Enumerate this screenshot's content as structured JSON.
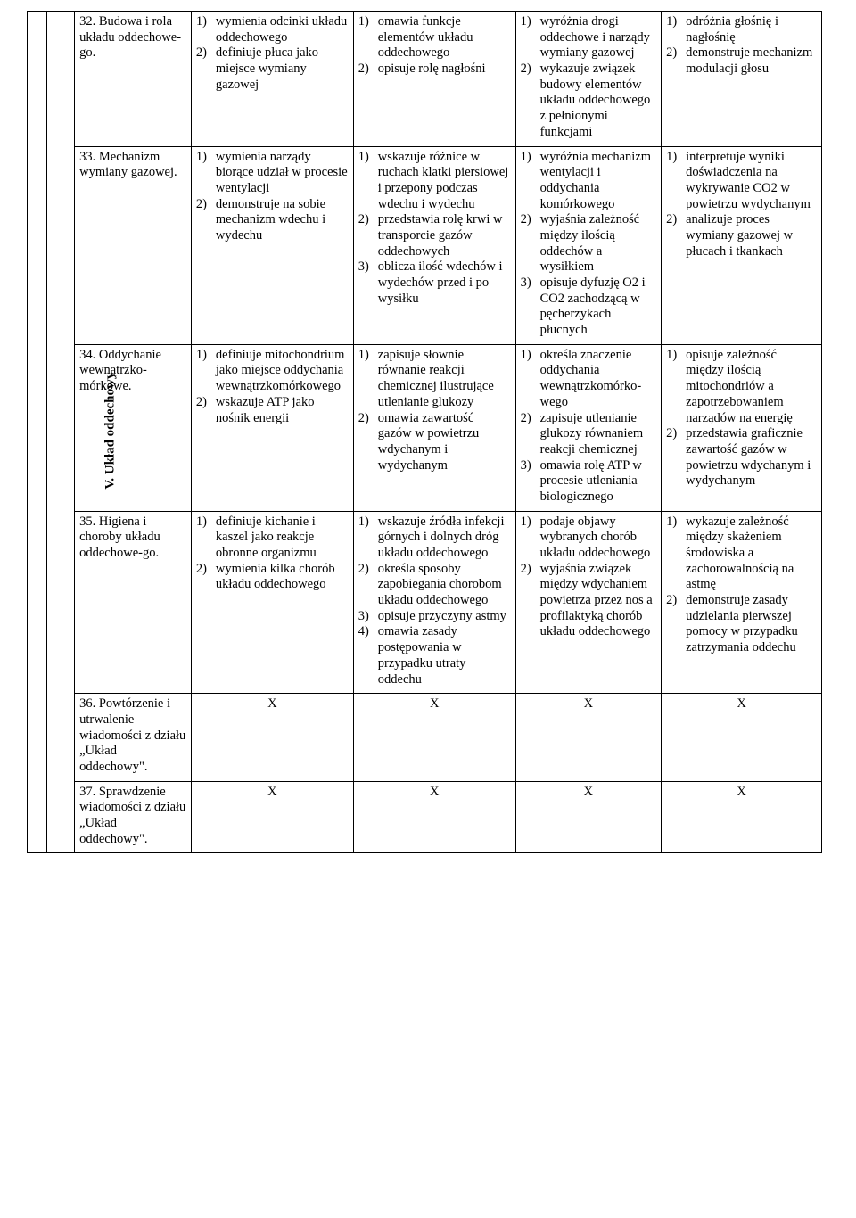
{
  "section_label": "V. Układ oddechowy",
  "rows": [
    {
      "topic": "32. Budowa i rola układu oddechowe-go.",
      "c1": [
        {
          "n": "1)",
          "t": "wymienia odcinki układu oddechowego"
        },
        {
          "n": "2)",
          "t": "definiuje płuca jako miejsce wymiany gazowej"
        }
      ],
      "c2": [
        {
          "n": "1)",
          "t": "omawia funkcje elementów układu oddechowego"
        },
        {
          "n": "2)",
          "t": "opisuje rolę nagłośni"
        }
      ],
      "c3": [
        {
          "n": "1)",
          "t": "wyróżnia drogi oddechowe i narządy wymiany gazowej"
        },
        {
          "n": "2)",
          "t": "wykazuje związek budowy elementów układu oddechowego z pełnionymi funkcjami"
        }
      ],
      "c4": [
        {
          "n": "1)",
          "t": "odróżnia głośnię i nagłośnię"
        },
        {
          "n": "2)",
          "t": "demonstruje mechanizm modulacji głosu"
        }
      ]
    },
    {
      "topic": "33. Mechanizm wymiany gazowej.",
      "c1": [
        {
          "n": "1)",
          "t": "wymienia narządy biorące udział w procesie wentylacji"
        },
        {
          "n": "2)",
          "t": "demonstruje na sobie mechanizm wdechu i wydechu"
        }
      ],
      "c2": [
        {
          "n": "1)",
          "t": "wskazuje różnice w ruchach klatki piersiowej i przepony podczas wdechu i wydechu"
        },
        {
          "n": "2)",
          "t": "przedstawia rolę krwi w transporcie gazów oddechowych"
        },
        {
          "n": "3)",
          "t": "oblicza ilość wdechów i wydechów przed i po wysiłku"
        }
      ],
      "c3": [
        {
          "n": "1)",
          "t": "wyróżnia mechanizm wentylacji i oddychania komórkowego"
        },
        {
          "n": "2)",
          "t": "wyjaśnia zależność między ilością oddechów a wysiłkiem"
        },
        {
          "n": "3)",
          "t": "opisuje dyfuzję O2 i CO2 zachodzącą w pęcherzykach płucnych"
        }
      ],
      "c4": [
        {
          "n": "1)",
          "t": "interpretuje wyniki doświadczenia na wykrywanie CO2 w powietrzu wydychanym"
        },
        {
          "n": "2)",
          "t": "analizuje proces wymiany gazowej w płucach i tkankach"
        }
      ]
    },
    {
      "topic": "34. Oddychanie wewnątrzko- mórkowe.",
      "c1": [
        {
          "n": "1)",
          "t": "definiuje mitochondrium jako miejsce oddychania wewnątrzkomórkowego"
        },
        {
          "n": "2)",
          "t": "wskazuje ATP jako nośnik energii"
        }
      ],
      "c2": [
        {
          "n": "1)",
          "t": "zapisuje słownie równanie reakcji chemicznej ilustrujące utlenianie glukozy"
        },
        {
          "n": "2)",
          "t": "omawia zawartość gazów w powietrzu wdychanym i wydychanym"
        }
      ],
      "c3": [
        {
          "n": "1)",
          "t": "określa znaczenie oddychania wewnątrzkomórko- wego"
        },
        {
          "n": "2)",
          "t": "zapisuje utlenianie glukozy równaniem reakcji chemicznej"
        },
        {
          "n": "3)",
          "t": "omawia rolę ATP w procesie utleniania biologicznego"
        }
      ],
      "c4": [
        {
          "n": "1)",
          "t": "opisuje zależność między ilością mitochondriów a zapotrzebowaniem narządów na energię"
        },
        {
          "n": "2)",
          "t": "przedstawia graficznie zawartość gazów w powietrzu wdychanym i wydychanym"
        }
      ]
    },
    {
      "topic": "35. Higiena i choroby układu oddechowe-go.",
      "c1": [
        {
          "n": "1)",
          "t": "definiuje kichanie i kaszel jako reakcje obronne organizmu"
        },
        {
          "n": "2)",
          "t": "wymienia kilka chorób układu oddechowego"
        }
      ],
      "c2": [
        {
          "n": "1)",
          "t": "wskazuje źródła infekcji górnych i dolnych dróg układu oddechowego"
        },
        {
          "n": "2)",
          "t": "określa sposoby zapobiegania chorobom układu oddechowego"
        },
        {
          "n": "3)",
          "t": "opisuje przyczyny astmy"
        },
        {
          "n": "4)",
          "t": "omawia zasady postępowania w przypadku utraty oddechu"
        }
      ],
      "c3": [
        {
          "n": "1)",
          "t": "podaje objawy wybranych chorób układu oddechowego"
        },
        {
          "n": "2)",
          "t": "wyjaśnia związek między wdychaniem powietrza przez nos a profilaktyką chorób układu oddechowego"
        }
      ],
      "c4": [
        {
          "n": "1)",
          "t": "wykazuje zależność między skażeniem środowiska a zachorowalnością na astmę"
        },
        {
          "n": "2)",
          "t": "demonstruje zasady udzielania pierwszej pomocy w przypadku zatrzymania oddechu"
        }
      ]
    },
    {
      "topic": "36. Powtórzenie i utrwalenie wiadomości z działu „Układ oddechowy\".",
      "x": "X"
    },
    {
      "topic": "37. Sprawdzenie wiadomości z działu „Układ oddechowy\".",
      "x": "X"
    }
  ]
}
